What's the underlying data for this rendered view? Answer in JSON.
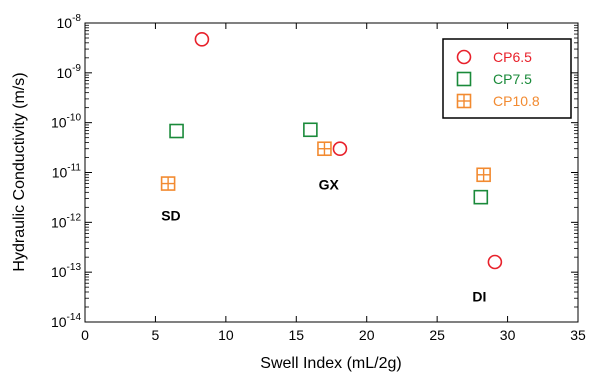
{
  "chart_data": {
    "type": "scatter",
    "title": "",
    "xlabel": "Swell Index (mL/2g)",
    "ylabel": "Hydraulic Conductivity (m/s)",
    "xlim": [
      0,
      35
    ],
    "ylim": [
      1e-14,
      1e-08
    ],
    "yscale": "log",
    "x_ticks": [
      0,
      5,
      10,
      15,
      20,
      25,
      30,
      35
    ],
    "x_tick_labels": [
      "0",
      "5",
      "10",
      "15",
      "20",
      "25",
      "30",
      "35"
    ],
    "y_ticks": [
      1e-14,
      1e-13,
      1e-12,
      1e-11,
      1e-10,
      1e-09,
      1e-08
    ],
    "y_tick_labels": [
      {
        "base": "10",
        "exp": "-14"
      },
      {
        "base": "10",
        "exp": "-13"
      },
      {
        "base": "10",
        "exp": "-12"
      },
      {
        "base": "10",
        "exp": "-11"
      },
      {
        "base": "10",
        "exp": "-10"
      },
      {
        "base": "10",
        "exp": "-9"
      },
      {
        "base": "10",
        "exp": "-8"
      }
    ],
    "grid": false,
    "legend_position": "top-right",
    "series": [
      {
        "name": "CP6.5",
        "marker": "circle",
        "color": "#e8212b",
        "points": [
          {
            "x": 8.3,
            "y": 4.7e-09
          },
          {
            "x": 18.1,
            "y": 3e-11
          },
          {
            "x": 29.1,
            "y": 1.6e-13
          }
        ]
      },
      {
        "name": "CP7.5",
        "marker": "square",
        "color": "#1a8a3a",
        "points": [
          {
            "x": 6.5,
            "y": 6.8e-11
          },
          {
            "x": 16.0,
            "y": 7.2e-11
          },
          {
            "x": 28.1,
            "y": 3.2e-12
          }
        ]
      },
      {
        "name": "CP10.8",
        "marker": "square-plus",
        "color": "#f28a30",
        "points": [
          {
            "x": 5.9,
            "y": 6e-12
          },
          {
            "x": 17.0,
            "y": 3e-11
          },
          {
            "x": 28.3,
            "y": 9e-12
          }
        ]
      }
    ],
    "annotations": [
      {
        "text": "SD",
        "x": 6.1,
        "y": 1.1e-12
      },
      {
        "text": "GX",
        "x": 17.3,
        "y": 4.6e-12
      },
      {
        "text": "DI",
        "x": 28.0,
        "y": 2.6e-14
      }
    ]
  }
}
